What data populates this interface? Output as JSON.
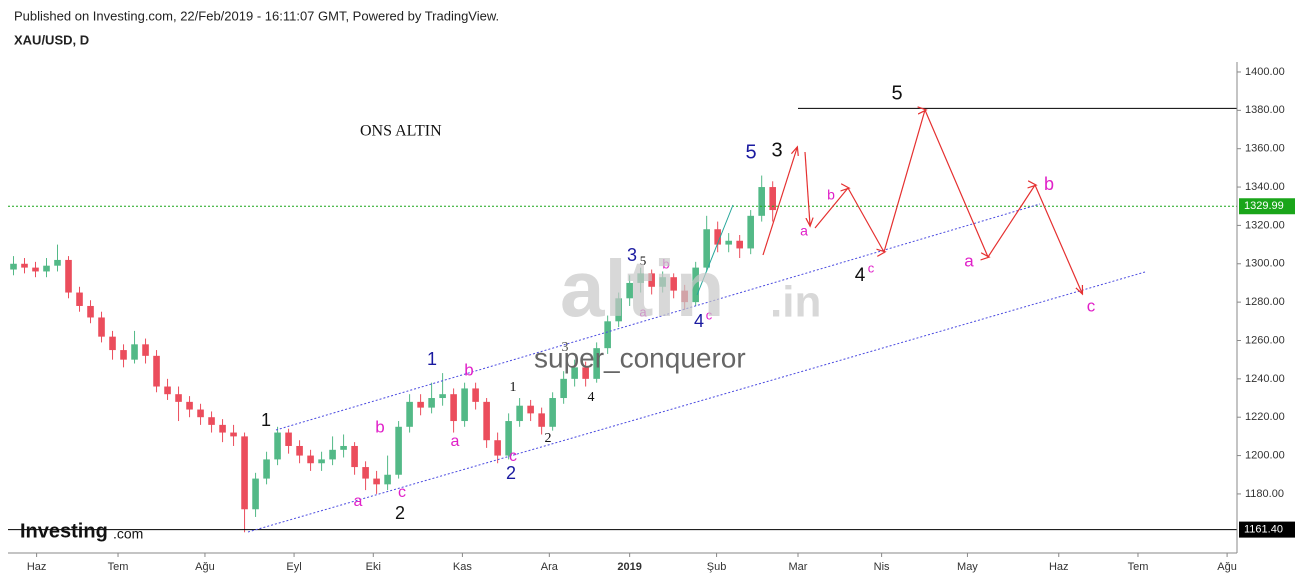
{
  "header": {
    "published": "Published on Investing.com, 22/Feb/2019 - 16:11:07 GMT, Powered by TradingView.",
    "symbol": "XAU/USD, D",
    "logo": "Investing",
    "logo_suffix": ".com"
  },
  "chart_data": {
    "type": "candlestick",
    "up_color": "#53b987",
    "down_color": "#eb4d5c",
    "open": [
      1297,
      1300,
      1298,
      1296,
      1299,
      1302,
      1285,
      1278,
      1272,
      1262,
      1255,
      1250,
      1258,
      1252,
      1236,
      1232,
      1228,
      1224,
      1220,
      1216,
      1212,
      1210,
      1172,
      1188,
      1198,
      1212,
      1205,
      1200,
      1196,
      1198,
      1203,
      1205,
      1194,
      1188,
      1185,
      1190,
      1215,
      1228,
      1225,
      1230,
      1232,
      1218,
      1235,
      1228,
      1208,
      1200,
      1218,
      1226,
      1222,
      1215,
      1230,
      1240,
      1246,
      1240,
      1256,
      1270,
      1282,
      1290,
      1295,
      1288,
      1293,
      1286,
      1280,
      1298,
      1318,
      1310,
      1312,
      1308,
      1325,
      1340
    ],
    "high": [
      1304,
      1303,
      1301,
      1303,
      1310,
      1304,
      1288,
      1281,
      1275,
      1265,
      1258,
      1265,
      1261,
      1255,
      1240,
      1236,
      1231,
      1227,
      1223,
      1219,
      1216,
      1212,
      1191,
      1202,
      1215,
      1214,
      1208,
      1203,
      1202,
      1210,
      1211,
      1207,
      1197,
      1192,
      1200,
      1218,
      1232,
      1232,
      1238,
      1243,
      1235,
      1238,
      1238,
      1230,
      1212,
      1222,
      1230,
      1229,
      1225,
      1233,
      1244,
      1250,
      1249,
      1259,
      1273,
      1285,
      1294,
      1298,
      1297,
      1296,
      1295,
      1289,
      1301,
      1325,
      1322,
      1316,
      1315,
      1328,
      1346,
      1343
    ],
    "low": [
      1294,
      1295,
      1293,
      1293,
      1296,
      1282,
      1275,
      1269,
      1259,
      1250,
      1246,
      1248,
      1248,
      1233,
      1229,
      1218,
      1220,
      1216,
      1212,
      1207,
      1205,
      1160,
      1168,
      1185,
      1195,
      1201,
      1196,
      1192,
      1192,
      1195,
      1199,
      1190,
      1182,
      1180,
      1182,
      1188,
      1212,
      1221,
      1222,
      1226,
      1212,
      1215,
      1224,
      1204,
      1196,
      1198,
      1215,
      1218,
      1211,
      1213,
      1227,
      1236,
      1236,
      1238,
      1253,
      1267,
      1278,
      1285,
      1284,
      1285,
      1282,
      1276,
      1278,
      1296,
      1306,
      1306,
      1303,
      1305,
      1322,
      1322
    ],
    "close": [
      1300,
      1298,
      1296,
      1299,
      1302,
      1285,
      1278,
      1272,
      1262,
      1255,
      1250,
      1258,
      1252,
      1236,
      1232,
      1228,
      1224,
      1220,
      1216,
      1212,
      1210,
      1172,
      1188,
      1198,
      1212,
      1205,
      1200,
      1196,
      1198,
      1203,
      1205,
      1194,
      1188,
      1185,
      1190,
      1215,
      1228,
      1225,
      1230,
      1232,
      1218,
      1235,
      1228,
      1208,
      1200,
      1218,
      1226,
      1222,
      1215,
      1230,
      1240,
      1246,
      1240,
      1256,
      1270,
      1282,
      1290,
      1295,
      1288,
      1293,
      1286,
      1280,
      1298,
      1318,
      1310,
      1312,
      1308,
      1325,
      1340,
      1328
    ],
    "xlim": [
      0,
      111.7
    ],
    "xticks": [
      {
        "value": 2.6,
        "label": "Haz"
      },
      {
        "value": 10,
        "label": "Tem"
      },
      {
        "value": 17.9,
        "label": "Ağu"
      },
      {
        "value": 26,
        "label": "Eyl"
      },
      {
        "value": 33.2,
        "label": "Eki"
      },
      {
        "value": 41.3,
        "label": "Kas"
      },
      {
        "value": 49.2,
        "label": "Ara"
      },
      {
        "value": 56.5,
        "label": "2019"
      },
      {
        "value": 64.4,
        "label": "Şub"
      },
      {
        "value": 71.8,
        "label": "Mar"
      },
      {
        "value": 79.4,
        "label": "Nis"
      },
      {
        "value": 87.2,
        "label": "May"
      },
      {
        "value": 95.5,
        "label": "Haz"
      },
      {
        "value": 102.7,
        "label": "Tem"
      },
      {
        "value": 110.8,
        "label": "Ağu"
      }
    ],
    "ylim": [
      1149.2,
      1405.2
    ],
    "yticks": [
      {
        "value": 1180,
        "label": "1180.00"
      },
      {
        "value": 1200,
        "label": "1200.00"
      },
      {
        "value": 1220,
        "label": "1220.00"
      },
      {
        "value": 1240,
        "label": "1240.00"
      },
      {
        "value": 1260,
        "label": "1260.00"
      },
      {
        "value": 1280,
        "label": "1280.00"
      },
      {
        "value": 1300,
        "label": "1300.00"
      },
      {
        "value": 1320,
        "label": "1320.00"
      },
      {
        "value": 1340,
        "label": "1340.00"
      },
      {
        "value": 1360,
        "label": "1360.00"
      },
      {
        "value": 1380,
        "label": "1380.00"
      },
      {
        "value": 1400,
        "label": "1400.00"
      }
    ],
    "grid": true,
    "price_lines": [
      {
        "value": 1329.99,
        "label": 1329.99,
        "color": "#1aa51a",
        "style": "dashed"
      },
      {
        "value": 1161.4,
        "label": "1161.40",
        "color": "#000000",
        "style": "solid"
      }
    ],
    "target_line": 1381,
    "annotations": [
      "ONS ALTIN",
      "1",
      "2",
      "a",
      "b",
      "c",
      "1",
      "a",
      "b",
      "c",
      "2",
      "1",
      "2",
      "3",
      "4",
      "a",
      "3",
      "5",
      "b",
      "4",
      "c",
      "5",
      "3",
      "5",
      "a",
      "b",
      "4",
      "c",
      "a",
      "b",
      "c",
      "super_conqueror"
    ],
    "watermark": [
      "altin",
      ".in"
    ]
  }
}
